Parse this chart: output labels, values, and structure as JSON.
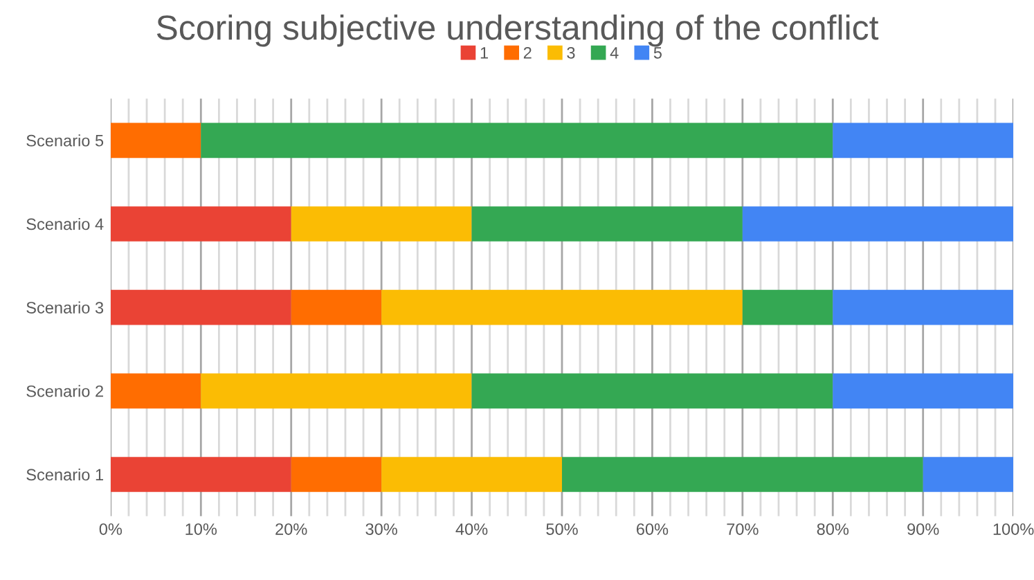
{
  "chart_data": {
    "type": "bar",
    "orientation": "horizontal",
    "stacked": true,
    "title": "Scoring subjective understanding of the conflict",
    "categories": [
      "Scenario 5",
      "Scenario 4",
      "Scenario 3",
      "Scenario 2",
      "Scenario 1"
    ],
    "series": [
      {
        "name": "1",
        "color": "#ea4335",
        "values": [
          0,
          20,
          20,
          0,
          20
        ]
      },
      {
        "name": "2",
        "color": "#ff6d01",
        "values": [
          10,
          0,
          10,
          10,
          10
        ]
      },
      {
        "name": "3",
        "color": "#fbbc04",
        "values": [
          0,
          20,
          40,
          30,
          20
        ]
      },
      {
        "name": "4",
        "color": "#34a853",
        "values": [
          70,
          30,
          10,
          40,
          40
        ]
      },
      {
        "name": "5",
        "color": "#4285f4",
        "values": [
          20,
          30,
          20,
          20,
          10
        ]
      }
    ],
    "xlim": [
      0,
      100
    ],
    "xticks": [
      {
        "value": 0,
        "label": "0%"
      },
      {
        "value": 2,
        "label": null
      },
      {
        "value": 4,
        "label": null
      },
      {
        "value": 6,
        "label": null
      },
      {
        "value": 8,
        "label": null
      },
      {
        "value": 10,
        "label": "10%"
      },
      {
        "value": 12,
        "label": null
      },
      {
        "value": 14,
        "label": null
      },
      {
        "value": 16,
        "label": null
      },
      {
        "value": 18,
        "label": null
      },
      {
        "value": 20,
        "label": "20%"
      },
      {
        "value": 22,
        "label": null
      },
      {
        "value": 24,
        "label": null
      },
      {
        "value": 26,
        "label": null
      },
      {
        "value": 28,
        "label": null
      },
      {
        "value": 30,
        "label": "30%"
      },
      {
        "value": 32,
        "label": null
      },
      {
        "value": 34,
        "label": null
      },
      {
        "value": 36,
        "label": null
      },
      {
        "value": 38,
        "label": null
      },
      {
        "value": 40,
        "label": "40%"
      },
      {
        "value": 42,
        "label": null
      },
      {
        "value": 44,
        "label": null
      },
      {
        "value": 46,
        "label": null
      },
      {
        "value": 48,
        "label": null
      },
      {
        "value": 50,
        "label": "50%"
      },
      {
        "value": 52,
        "label": null
      },
      {
        "value": 54,
        "label": null
      },
      {
        "value": 56,
        "label": null
      },
      {
        "value": 58,
        "label": null
      },
      {
        "value": 60,
        "label": "60%"
      },
      {
        "value": 62,
        "label": null
      },
      {
        "value": 64,
        "label": null
      },
      {
        "value": 66,
        "label": null
      },
      {
        "value": 68,
        "label": null
      },
      {
        "value": 70,
        "label": "70%"
      },
      {
        "value": 72,
        "label": null
      },
      {
        "value": 74,
        "label": null
      },
      {
        "value": 76,
        "label": null
      },
      {
        "value": 78,
        "label": null
      },
      {
        "value": 80,
        "label": "80%"
      },
      {
        "value": 82,
        "label": null
      },
      {
        "value": 84,
        "label": null
      },
      {
        "value": 86,
        "label": null
      },
      {
        "value": 88,
        "label": null
      },
      {
        "value": 90,
        "label": "90%"
      },
      {
        "value": 92,
        "label": null
      },
      {
        "value": 94,
        "label": null
      },
      {
        "value": 96,
        "label": null
      },
      {
        "value": 98,
        "label": null
      },
      {
        "value": 100,
        "label": "100%"
      }
    ],
    "grid": "x",
    "legend": "top"
  }
}
